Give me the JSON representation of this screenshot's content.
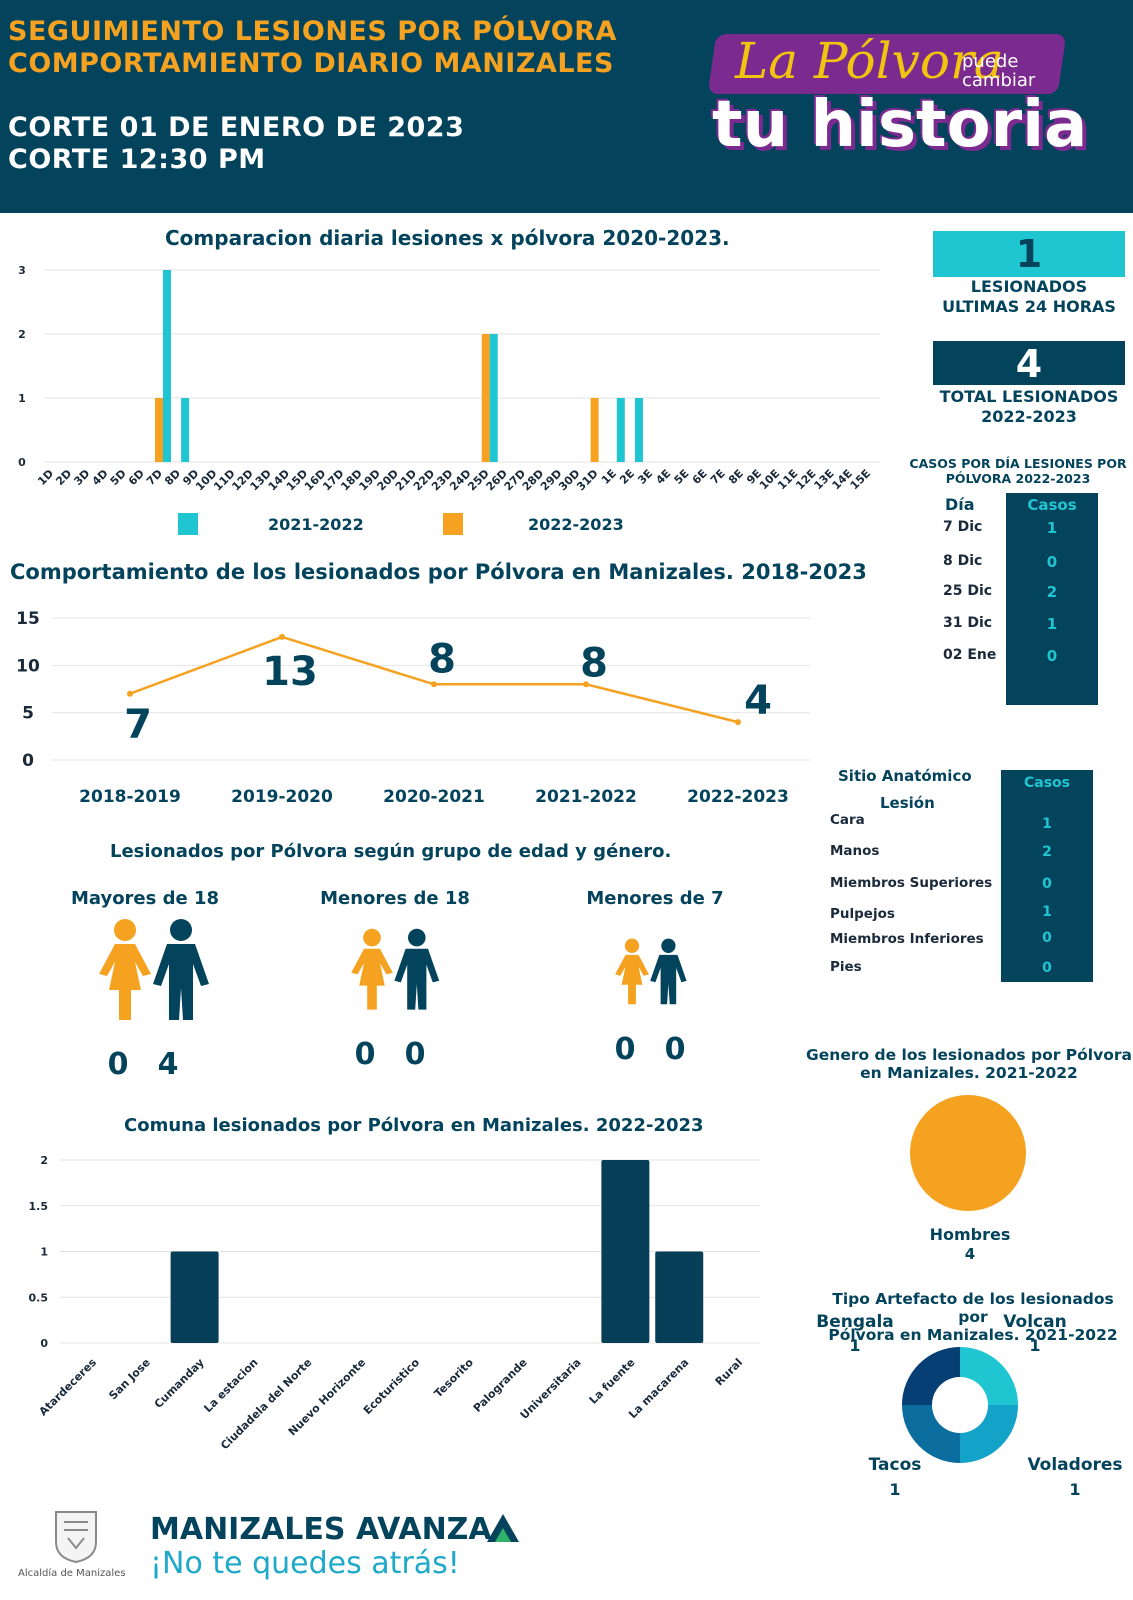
{
  "header": {
    "title_line1": "SEGUIMIENTO LESIONES POR PÓLVORA",
    "title_line2": "COMPORTAMIENTO DIARIO MANIZALES",
    "sub_line1": "CORTE 01 DE ENERO DE 2023",
    "sub_line2": "CORTE 12:30 PM",
    "logo_line1": "La Pólvora",
    "logo_small1": "puede",
    "logo_small2": "cambiar",
    "logo_line2": "tu historia"
  },
  "stats": {
    "last24_value": "1",
    "last24_label1": "LESIONADOS",
    "last24_label2": "ULTIMAS 24 HORAS",
    "total_value": "4",
    "total_label1": "TOTAL LESIONADOS",
    "total_label2": "2022-2023"
  },
  "cases_table": {
    "title1": "CASOS POR DÍA LESIONES POR",
    "title2": "PÓLVORA 2022-2023",
    "col_day": "Día",
    "col_cases": "Casos",
    "rows": [
      {
        "day": "7 Dic",
        "cases": "1"
      },
      {
        "day": "8 Dic",
        "cases": "0"
      },
      {
        "day": "25 Dic",
        "cases": "2"
      },
      {
        "day": "31 Dic",
        "cases": "1"
      },
      {
        "day": "02 Ene",
        "cases": "0"
      }
    ]
  },
  "anatomic_table": {
    "title1": "Sitio Anatómico",
    "title2": "Lesión",
    "col_cases": "Casos",
    "rows": [
      {
        "site": "Cara",
        "cases": "1"
      },
      {
        "site": "Manos",
        "cases": "2"
      },
      {
        "site": "Miembros Superiores",
        "cases": "0"
      },
      {
        "site": "Pulpejos",
        "cases": "1"
      },
      {
        "site": "Miembros Inferiores",
        "cases": "0"
      },
      {
        "site": "Pies",
        "cases": "0"
      }
    ]
  },
  "age_section": {
    "title": "Lesionados por Pólvora según grupo de edad y género.",
    "groups": [
      {
        "label": "Mayores de 18",
        "female": "0",
        "male": "4"
      },
      {
        "label": "Menores de 18",
        "female": "0",
        "male": "0"
      },
      {
        "label": "Menores de 7",
        "female": "0",
        "male": "0"
      }
    ]
  },
  "footer": {
    "crest_label": "Alcaldía de Manizales",
    "brand_line1a": "MANIZALES ",
    "brand_line1b": "AVANZA",
    "brand_line2": "¡No te quedes atrás!"
  },
  "colors": {
    "navy": "#04435c",
    "orange": "#f5a220",
    "cyan": "#1fc6d1",
    "bar_navy": "#073f59"
  },
  "chart_data": [
    {
      "type": "bar",
      "title": "Comparacion diaria  lesiones x pólvora 2020-2023.",
      "categories": [
        "1D",
        "2D",
        "3D",
        "4D",
        "5D",
        "6D",
        "7D",
        "8D",
        "9D",
        "10D",
        "11D",
        "12D",
        "13D",
        "14D",
        "15D",
        "16D",
        "17D",
        "18D",
        "19D",
        "20D",
        "21D",
        "22D",
        "23D",
        "24D",
        "25D",
        "26D",
        "27D",
        "28D",
        "29D",
        "30D",
        "31D",
        "1E",
        "2E",
        "3E",
        "4E",
        "5E",
        "6E",
        "7E",
        "8E",
        "9E",
        "10E",
        "11E",
        "12E",
        "13E",
        "14E",
        "15E"
      ],
      "series": [
        {
          "name": "2021-2022",
          "color": "#1fc6d1",
          "values": [
            0,
            0,
            0,
            0,
            0,
            0,
            3,
            1,
            0,
            0,
            0,
            0,
            0,
            0,
            0,
            0,
            0,
            0,
            0,
            0,
            0,
            0,
            0,
            0,
            2,
            0,
            0,
            0,
            0,
            0,
            0,
            1,
            1,
            0,
            0,
            0,
            0,
            0,
            0,
            0,
            0,
            0,
            0,
            0,
            0,
            0
          ]
        },
        {
          "name": "2022-2023",
          "color": "#f5a220",
          "values": [
            0,
            0,
            0,
            0,
            0,
            0,
            1,
            0,
            0,
            0,
            0,
            0,
            0,
            0,
            0,
            0,
            0,
            0,
            0,
            0,
            0,
            0,
            0,
            0,
            2,
            0,
            0,
            0,
            0,
            0,
            1,
            0,
            0,
            0,
            0,
            0,
            0,
            0,
            0,
            0,
            0,
            0,
            0,
            0,
            0,
            0
          ]
        }
      ],
      "yticks": [
        "0",
        "1",
        "2",
        "3"
      ],
      "ylim": [
        0,
        3
      ],
      "legend": "bottom"
    },
    {
      "type": "line",
      "title": "Comportamiento de los lesionados por Pólvora en Manizales. 2018-2023",
      "categories": [
        "2018-2019",
        "2019-2020",
        "2020-2021",
        "2021-2022",
        "2022-2023"
      ],
      "values": [
        7,
        13,
        8,
        8,
        4
      ],
      "labels": [
        "7",
        "13",
        "8",
        "8",
        "4"
      ],
      "yticks": [
        "0",
        "5",
        "10",
        "15"
      ],
      "ylim": [
        0,
        15
      ],
      "color": "#f5a220"
    },
    {
      "type": "bar",
      "title": "Comuna lesionados por Pólvora en Manizales. 2022-2023",
      "categories": [
        "Atardeceres",
        "San Jose",
        "Cumanday",
        "La estacion",
        "Ciudadela del Norte",
        "Nuevo Horizonte",
        "Ecoturistico",
        "Tesorito",
        "Palogrande",
        "Universitaria",
        "La fuente",
        "La macarena",
        "Rural"
      ],
      "values": [
        0,
        0,
        1,
        0,
        0,
        0,
        0,
        0,
        0,
        0,
        2,
        1,
        0
      ],
      "yticks": [
        "0",
        "0.5",
        "1",
        "1.5",
        "2"
      ],
      "ylim": [
        0,
        2
      ],
      "color": "#073f59"
    },
    {
      "type": "pie",
      "title1": "Genero de los lesionados por Pólvora",
      "title2": "en Manizales. 2021-2022",
      "slices": [
        {
          "label": "Hombres",
          "value": 4,
          "value_text": "4",
          "color": "#f5a220"
        }
      ]
    },
    {
      "type": "pie",
      "title1": "Tipo Artefacto de los lesionados por",
      "title2": "Pólvora en Manizales. 2021-2022",
      "slices": [
        {
          "label": "Volcan",
          "value": 1,
          "value_text": "1",
          "color": "#1fc6d1"
        },
        {
          "label": "Voladores",
          "value": 1,
          "value_text": "1",
          "color": "#13a3c9"
        },
        {
          "label": "Tacos",
          "value": 1,
          "value_text": "1",
          "color": "#0a6d9e"
        },
        {
          "label": "Bengala",
          "value": 1,
          "value_text": "1",
          "color": "#053f73"
        }
      ]
    }
  ]
}
